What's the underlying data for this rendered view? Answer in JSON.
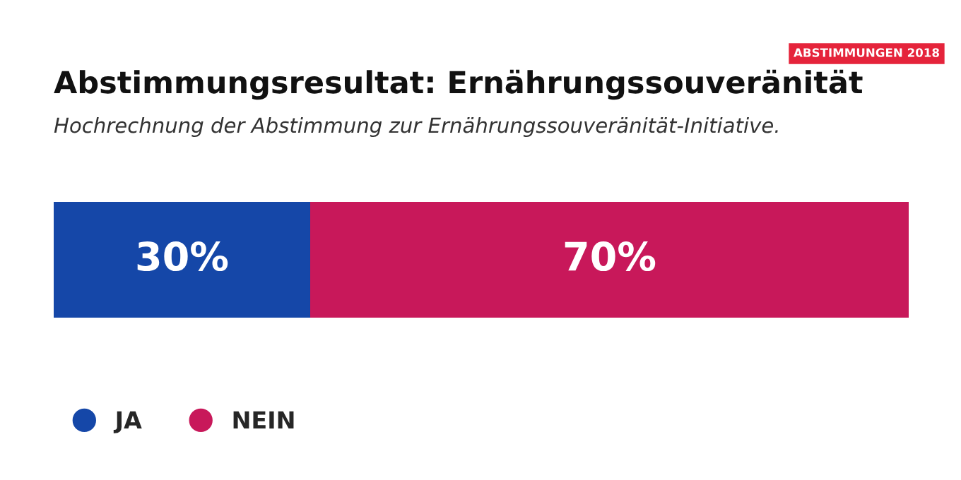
{
  "chart_data": {
    "type": "bar",
    "orientation": "horizontal",
    "stacked": true,
    "title": "Abstimmungsresultat: Ernährungssouveränität",
    "subtitle": "Hochrechnung der Abstimmung zur Ernährungssouveränität-Initiative.",
    "annotations": [
      "ABSTIMMUNGEN 2018"
    ],
    "categories": [
      null
    ],
    "series": [
      {
        "name": "JA",
        "color": "#1547a8",
        "values": [
          30
        ],
        "value_labels": [
          "30%"
        ]
      },
      {
        "name": "NEIN",
        "color": "#c8185a",
        "values": [
          70
        ],
        "value_labels": [
          "70%"
        ]
      }
    ],
    "xlim": [
      0,
      100
    ],
    "legend": "bottom left"
  }
}
